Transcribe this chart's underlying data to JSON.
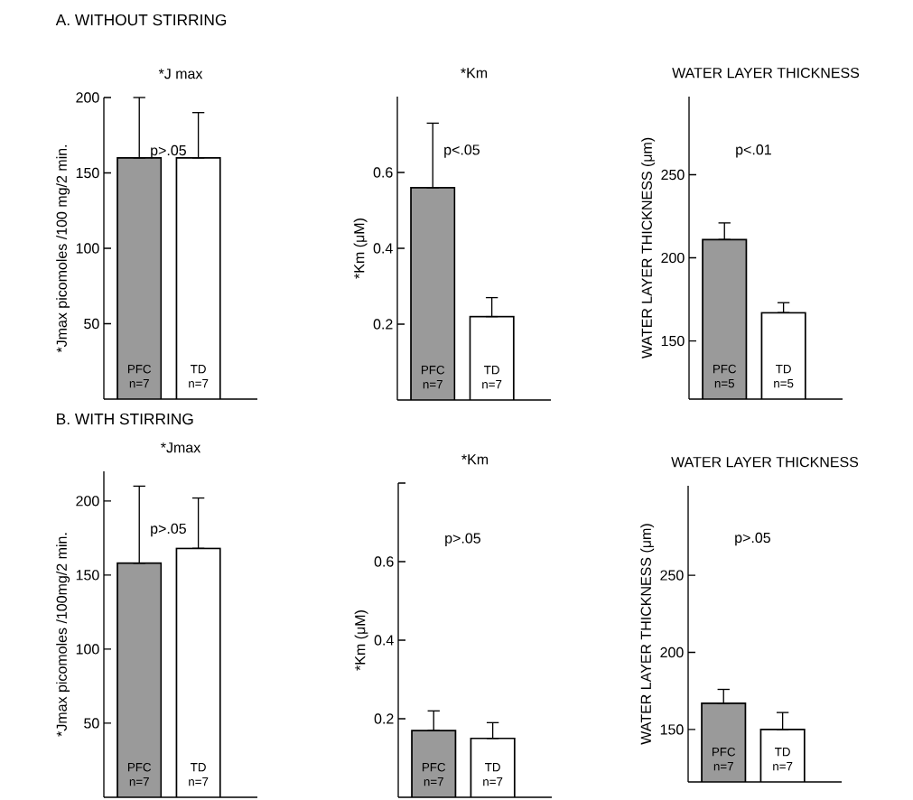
{
  "chart_data": [
    {
      "type": "bar",
      "subtitle": "A. WITHOUT STIRRING",
      "title": "*J max",
      "ylabel": "*Jmax picomoles /100 mg/2 min.",
      "categories": [
        "PFC n=7",
        "TD n=7"
      ],
      "values": [
        160,
        160
      ],
      "colors": [
        "#9a9a9a",
        "#ffffff"
      ],
      "errors": [
        [
          160,
          200
        ],
        [
          160,
          190
        ]
      ],
      "ylim": [
        0,
        200
      ],
      "yticks": [
        50,
        100,
        150,
        200
      ],
      "annotations": [
        "p>.05"
      ]
    },
    {
      "type": "bar",
      "title": "*Km",
      "ylabel": "*Km (μM)",
      "categories": [
        "PFC n=7",
        "TD n=7"
      ],
      "values": [
        0.56,
        0.22
      ],
      "colors": [
        "#9a9a9a",
        "#ffffff"
      ],
      "errors": [
        [
          0.56,
          0.73
        ],
        [
          0.22,
          0.27
        ]
      ],
      "ylim": [
        0,
        0.8
      ],
      "yticks": [
        0.2,
        0.4,
        0.6
      ],
      "annotations": [
        "p<.05"
      ]
    },
    {
      "type": "bar",
      "title": "WATER LAYER THICKNESS",
      "ylabel": "WATER LAYER THICKNESS (μm)",
      "categories": [
        "PFC n=5",
        "TD n=5"
      ],
      "values": [
        211,
        167
      ],
      "colors": [
        "#9a9a9a",
        "#ffffff"
      ],
      "errors": [
        [
          211,
          221
        ],
        [
          167,
          173
        ]
      ],
      "ylim": [
        115,
        297
      ],
      "yticks": [
        150,
        200,
        250
      ],
      "annotations": [
        "p<.01"
      ]
    },
    {
      "type": "bar",
      "subtitle": "B. WITH STIRRING",
      "title": "*Jmax",
      "ylabel": "*Jmax picomoles /100mg/2 min.",
      "categories": [
        "PFC n=7",
        "TD n=7"
      ],
      "values": [
        158,
        168
      ],
      "colors": [
        "#9a9a9a",
        "#ffffff"
      ],
      "errors": [
        [
          158,
          210
        ],
        [
          168,
          202
        ]
      ],
      "ylim": [
        0,
        220
      ],
      "yticks": [
        50,
        100,
        150,
        200
      ],
      "annotations": [
        "p>.05"
      ]
    },
    {
      "type": "bar",
      "title": "*Km",
      "ylabel": "*Km (μM)",
      "categories": [
        "PFC n=7",
        "TD n=7"
      ],
      "values": [
        0.17,
        0.15
      ],
      "colors": [
        "#9a9a9a",
        "#ffffff"
      ],
      "errors": [
        [
          0.17,
          0.22
        ],
        [
          0.15,
          0.19
        ]
      ],
      "ylim": [
        0,
        0.8
      ],
      "yticks": [
        0.2,
        0.4,
        0.6,
        {
          "value": 0.8,
          "label": null
        }
      ],
      "annotations": [
        "p>.05"
      ]
    },
    {
      "type": "bar",
      "title": "WATER LAYER THICKNESS",
      "ylabel": "WATER LAYER THICKNESS (μm)",
      "categories": [
        "PFC n=7",
        "TD n=7"
      ],
      "values": [
        167,
        150
      ],
      "colors": [
        "#9a9a9a",
        "#ffffff"
      ],
      "errors": [
        [
          167,
          176
        ],
        [
          150,
          161
        ]
      ],
      "ylim": [
        116,
        308
      ],
      "yticks": [
        150,
        200,
        250
      ],
      "annotations": [
        "p>.05"
      ]
    }
  ]
}
